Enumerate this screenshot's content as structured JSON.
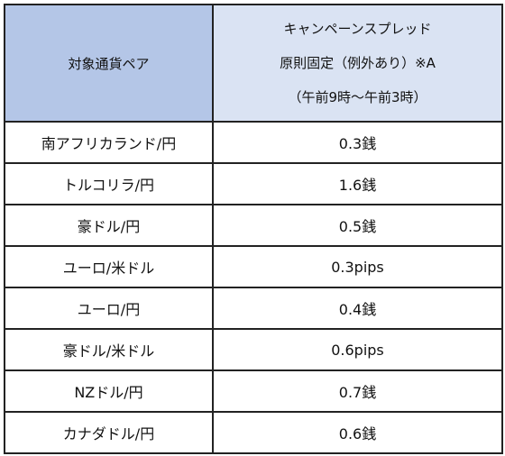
{
  "header": {
    "pair_col": "対象通貨ペア",
    "spread_lines": [
      "キャンペーンスプレッド",
      "原則固定（例外あり）※A",
      "（午前9時～午前3時）"
    ]
  },
  "rows": [
    {
      "pair": "南アフリカランド/円",
      "spread": "0.3銭"
    },
    {
      "pair": "トルコリラ/円",
      "spread": "1.6銭"
    },
    {
      "pair": "豪ドル/円",
      "spread": "0.5銭"
    },
    {
      "pair": "ユーロ/米ドル",
      "spread": "0.3pips"
    },
    {
      "pair": "ユーロ/円",
      "spread": "0.4銭"
    },
    {
      "pair": "豪ドル/米ドル",
      "spread": "0.6pips"
    },
    {
      "pair": "NZドル/円",
      "spread": "0.7銭"
    },
    {
      "pair": "カナダドル/円",
      "spread": "0.6銭"
    }
  ]
}
